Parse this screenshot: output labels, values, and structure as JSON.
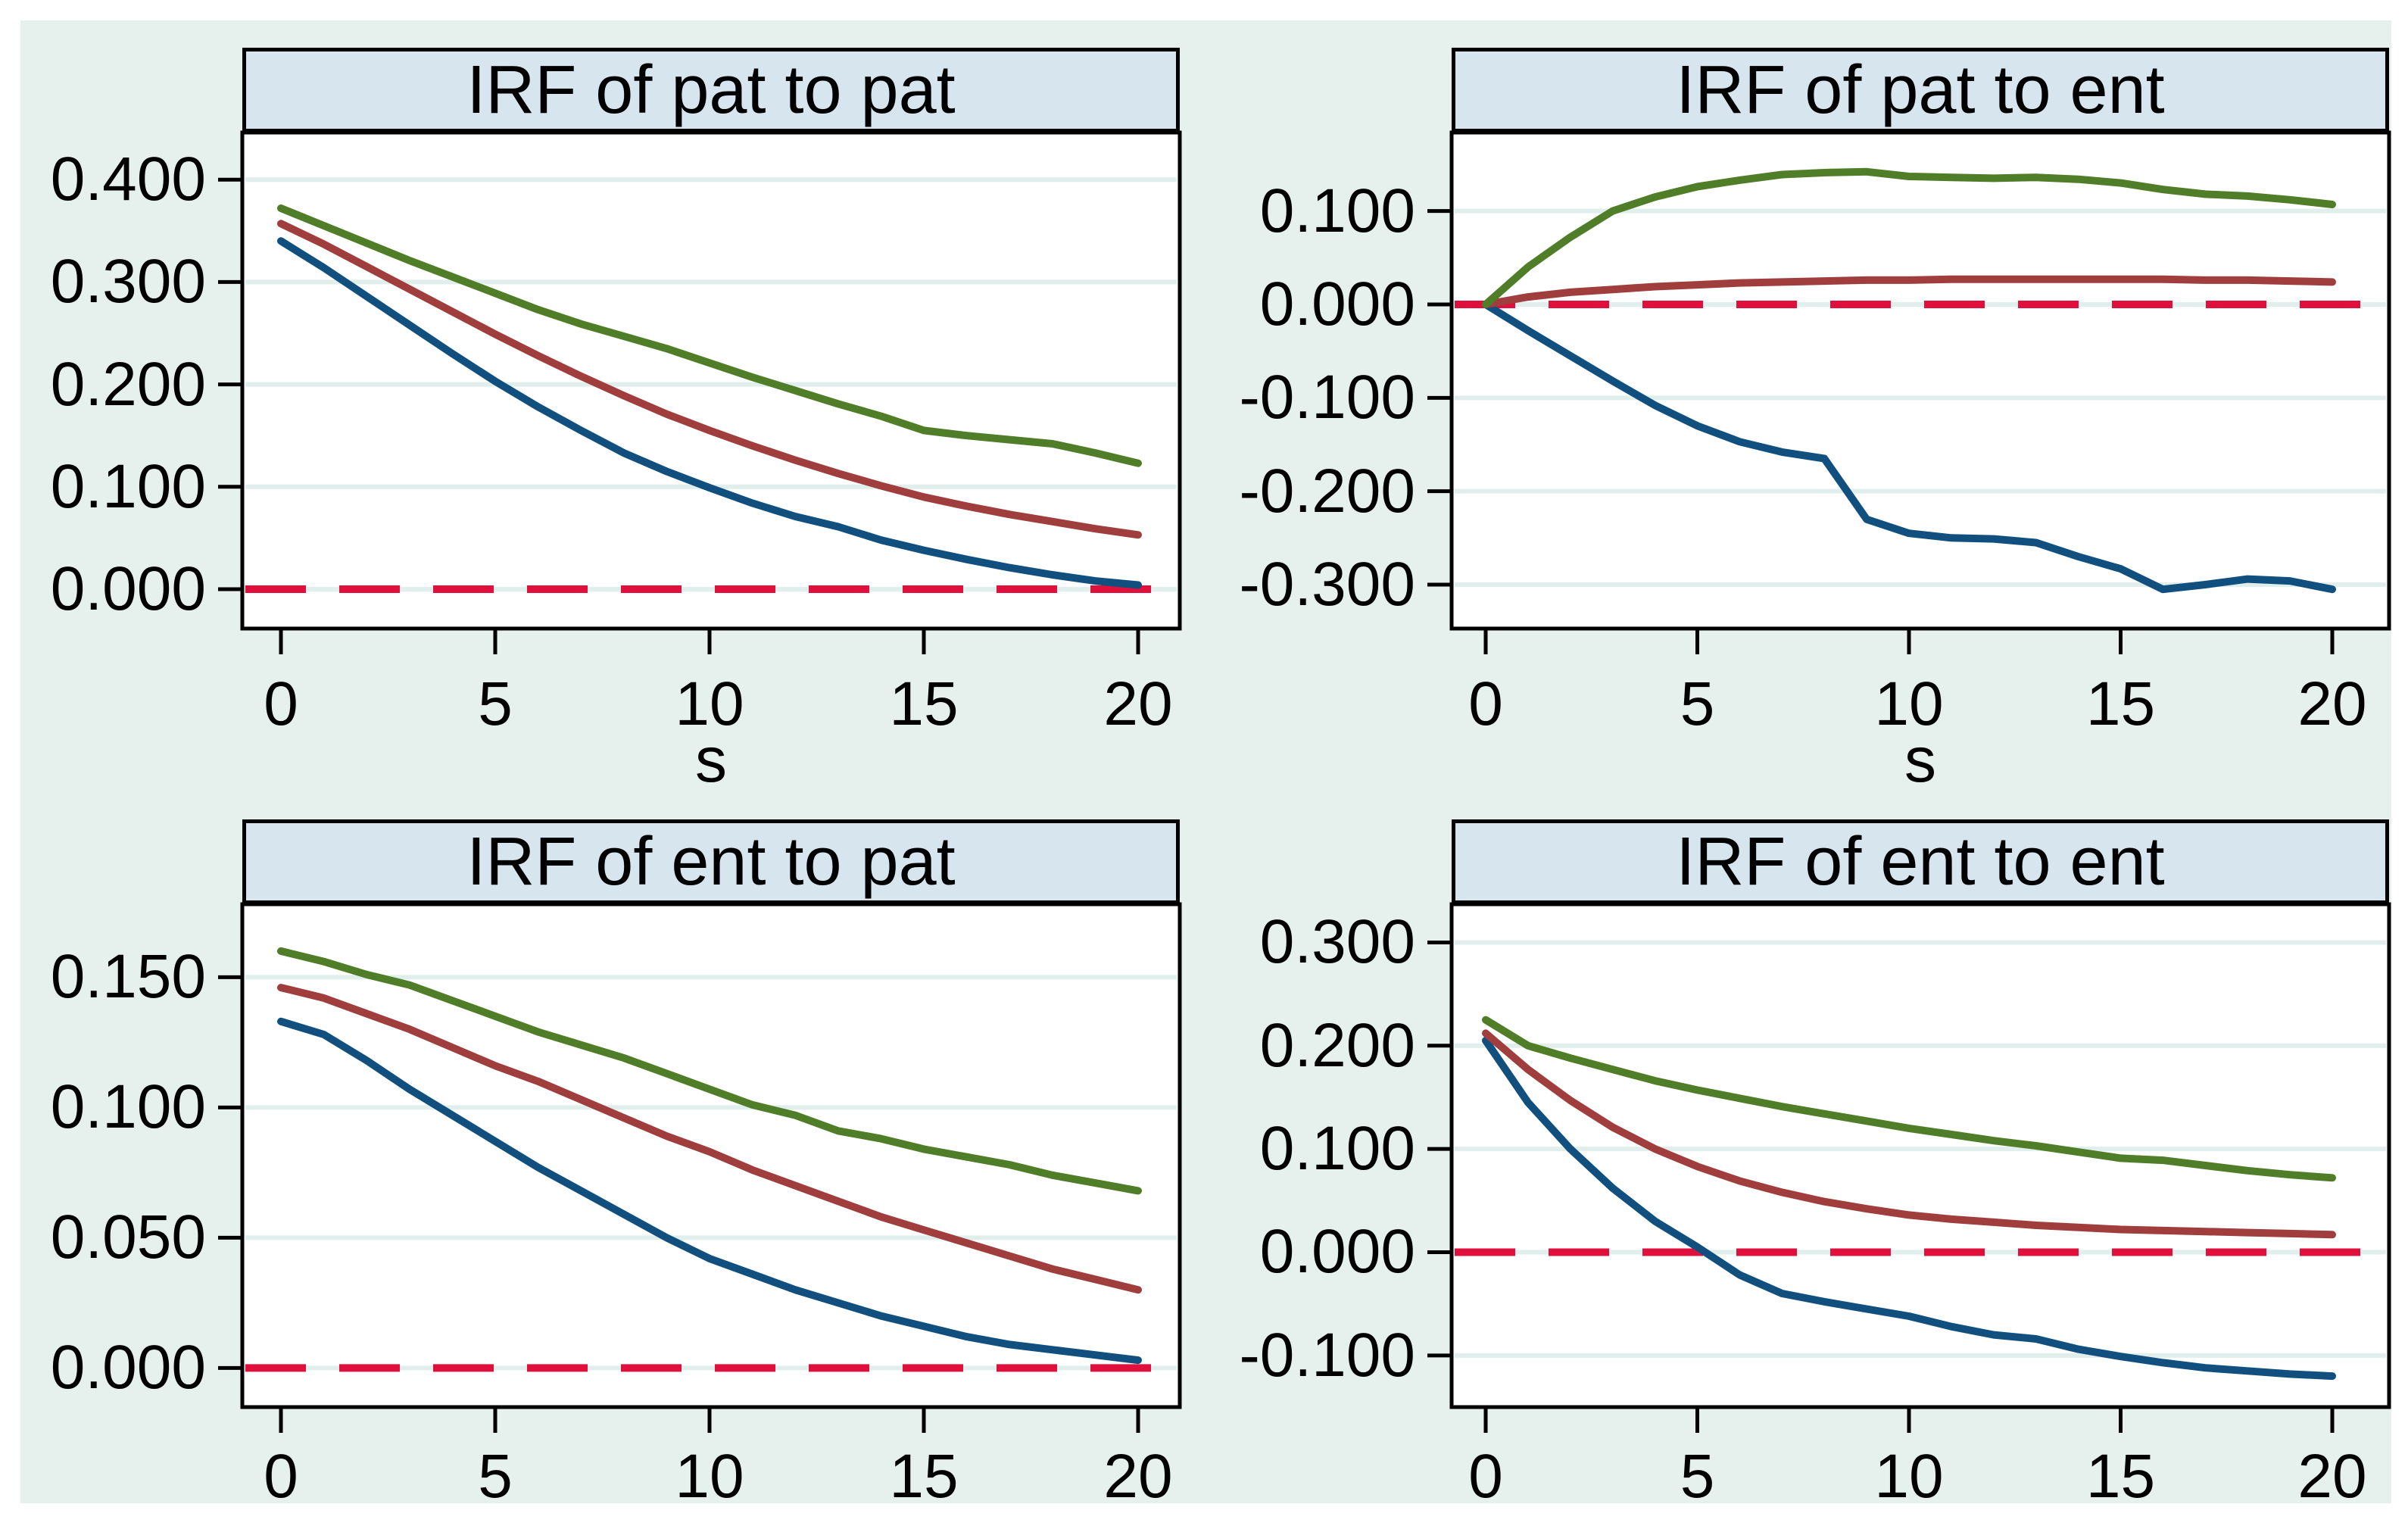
{
  "figure": {
    "page_background": "#ffffff",
    "figure_background": "#e6f1ee",
    "plot_background": "#ffffff",
    "titlebar_background": "#d6e5ee",
    "grid_color": "#e0efec",
    "axis_color": "#000000",
    "zero_line_color": "#e0103c",
    "series_colors": {
      "green": "#4f7d28",
      "red": "#9f3e3c",
      "blue": "#11507e"
    }
  },
  "chart_data": [
    {
      "type": "line",
      "title": "IRF of pat to pat",
      "xlabel": "s",
      "x": [
        0,
        1,
        2,
        3,
        4,
        5,
        6,
        7,
        8,
        9,
        10,
        11,
        12,
        13,
        14,
        15,
        16,
        17,
        18,
        19,
        20
      ],
      "xtick_labels": [
        "0",
        "5",
        "10",
        "15",
        "20"
      ],
      "xtick_values": [
        0,
        5,
        10,
        15,
        20
      ],
      "ytick_labels": [
        "0.000",
        "0.100",
        "0.200",
        "0.300",
        "0.400"
      ],
      "ytick_values": [
        0,
        0.1,
        0.2,
        0.3,
        0.4
      ],
      "ylim": [
        -0.0385,
        0.446
      ],
      "zero_line": 0,
      "grid": true,
      "legend": "none",
      "series": [
        {
          "name": "upper-band-green",
          "color": "#4f7d28",
          "values": [
            0.372,
            0.355,
            0.338,
            0.321,
            0.305,
            0.289,
            0.273,
            0.259,
            0.247,
            0.235,
            0.221,
            0.207,
            0.194,
            0.181,
            0.169,
            0.155,
            0.15,
            0.146,
            0.142,
            0.133,
            0.123
          ]
        },
        {
          "name": "irf-red",
          "color": "#9f3e3c",
          "values": [
            0.357,
            0.337,
            0.315,
            0.293,
            0.271,
            0.249,
            0.228,
            0.208,
            0.189,
            0.171,
            0.155,
            0.14,
            0.126,
            0.113,
            0.101,
            0.09,
            0.081,
            0.073,
            0.066,
            0.059,
            0.053
          ]
        },
        {
          "name": "lower-band-blue",
          "color": "#11507e",
          "values": [
            0.34,
            0.314,
            0.286,
            0.258,
            0.23,
            0.203,
            0.178,
            0.155,
            0.133,
            0.115,
            0.099,
            0.084,
            0.071,
            0.061,
            0.048,
            0.038,
            0.029,
            0.021,
            0.014,
            0.008,
            0.004
          ]
        }
      ]
    },
    {
      "type": "line",
      "title": "IRF of pat to ent",
      "xlabel": "s",
      "x": [
        0,
        1,
        2,
        3,
        4,
        5,
        6,
        7,
        8,
        9,
        10,
        11,
        12,
        13,
        14,
        15,
        16,
        17,
        18,
        19,
        20
      ],
      "xtick_labels": [
        "0",
        "5",
        "10",
        "15",
        "20"
      ],
      "xtick_values": [
        0,
        5,
        10,
        15,
        20
      ],
      "ytick_labels": [
        "0.100",
        "0.000",
        "-0.100",
        "-0.200",
        "-0.300"
      ],
      "ytick_values": [
        0.1,
        0,
        -0.1,
        -0.2,
        -0.3
      ],
      "ylim": [
        -0.347,
        0.184
      ],
      "zero_line": 0,
      "grid": true,
      "legend": "none",
      "series": [
        {
          "name": "upper-band-green",
          "color": "#4f7d28",
          "values": [
            0.0,
            0.04,
            0.072,
            0.1,
            0.115,
            0.126,
            0.133,
            0.139,
            0.141,
            0.142,
            0.137,
            0.136,
            0.135,
            0.136,
            0.134,
            0.13,
            0.123,
            0.118,
            0.116,
            0.112,
            0.107
          ]
        },
        {
          "name": "irf-red",
          "color": "#9f3e3c",
          "values": [
            0.0,
            0.008,
            0.013,
            0.016,
            0.019,
            0.021,
            0.023,
            0.024,
            0.025,
            0.026,
            0.026,
            0.027,
            0.027,
            0.027,
            0.027,
            0.027,
            0.027,
            0.026,
            0.026,
            0.025,
            0.024
          ]
        },
        {
          "name": "lower-band-blue",
          "color": "#11507e",
          "values": [
            0.0,
            -0.028,
            -0.055,
            -0.082,
            -0.108,
            -0.13,
            -0.147,
            -0.158,
            -0.165,
            -0.23,
            -0.245,
            -0.25,
            -0.251,
            -0.255,
            -0.27,
            -0.283,
            -0.305,
            -0.3,
            -0.294,
            -0.296,
            -0.305
          ]
        }
      ]
    },
    {
      "type": "line",
      "title": "IRF of ent to pat",
      "xlabel": "",
      "x": [
        0,
        1,
        2,
        3,
        4,
        5,
        6,
        7,
        8,
        9,
        10,
        11,
        12,
        13,
        14,
        15,
        16,
        17,
        18,
        19,
        20
      ],
      "xtick_labels": [
        "0",
        "5",
        "10",
        "15",
        "20"
      ],
      "xtick_values": [
        0,
        5,
        10,
        15,
        20
      ],
      "ytick_labels": [
        "0.000",
        "0.050",
        "0.100",
        "0.150"
      ],
      "ytick_values": [
        0,
        0.05,
        0.1,
        0.15
      ],
      "ylim": [
        -0.015,
        0.178
      ],
      "zero_line": 0,
      "grid": true,
      "legend": "none",
      "series": [
        {
          "name": "upper-band-green",
          "color": "#4f7d28",
          "values": [
            0.16,
            0.156,
            0.151,
            0.147,
            0.141,
            0.135,
            0.129,
            0.124,
            0.119,
            0.113,
            0.107,
            0.101,
            0.097,
            0.091,
            0.088,
            0.084,
            0.081,
            0.078,
            0.074,
            0.071,
            0.068
          ]
        },
        {
          "name": "irf-red",
          "color": "#9f3e3c",
          "values": [
            0.146,
            0.142,
            0.136,
            0.13,
            0.123,
            0.116,
            0.11,
            0.103,
            0.096,
            0.089,
            0.083,
            0.076,
            0.07,
            0.064,
            0.058,
            0.053,
            0.048,
            0.043,
            0.038,
            0.034,
            0.03
          ]
        },
        {
          "name": "lower-band-blue",
          "color": "#11507e",
          "values": [
            0.133,
            0.128,
            0.118,
            0.107,
            0.097,
            0.087,
            0.077,
            0.068,
            0.059,
            0.05,
            0.042,
            0.036,
            0.03,
            0.025,
            0.02,
            0.016,
            0.012,
            0.009,
            0.007,
            0.005,
            0.003
          ]
        }
      ]
    },
    {
      "type": "line",
      "title": "IRF of ent to ent",
      "xlabel": "",
      "x": [
        0,
        1,
        2,
        3,
        4,
        5,
        6,
        7,
        8,
        9,
        10,
        11,
        12,
        13,
        14,
        15,
        16,
        17,
        18,
        19,
        20
      ],
      "xtick_labels": [
        "0",
        "5",
        "10",
        "15",
        "20"
      ],
      "xtick_values": [
        0,
        5,
        10,
        15,
        20
      ],
      "ytick_labels": [
        "-0.100",
        "0.000",
        "0.100",
        "0.200",
        "0.300"
      ],
      "ytick_values": [
        -0.1,
        0,
        0.1,
        0.2,
        0.3
      ],
      "ylim": [
        -0.15,
        0.337
      ],
      "zero_line": 0,
      "grid": true,
      "legend": "none",
      "series": [
        {
          "name": "upper-band-green",
          "color": "#4f7d28",
          "values": [
            0.225,
            0.2,
            0.188,
            0.177,
            0.166,
            0.157,
            0.149,
            0.141,
            0.134,
            0.127,
            0.12,
            0.114,
            0.108,
            0.103,
            0.097,
            0.091,
            0.089,
            0.084,
            0.079,
            0.075,
            0.072
          ]
        },
        {
          "name": "irf-red",
          "color": "#9f3e3c",
          "values": [
            0.212,
            0.177,
            0.147,
            0.121,
            0.1,
            0.083,
            0.069,
            0.058,
            0.049,
            0.042,
            0.036,
            0.032,
            0.029,
            0.026,
            0.024,
            0.022,
            0.021,
            0.02,
            0.019,
            0.018,
            0.017
          ]
        },
        {
          "name": "lower-band-blue",
          "color": "#11507e",
          "values": [
            0.205,
            0.145,
            0.1,
            0.062,
            0.03,
            0.005,
            -0.022,
            -0.04,
            -0.048,
            -0.055,
            -0.062,
            -0.072,
            -0.08,
            -0.084,
            -0.094,
            -0.101,
            -0.107,
            -0.112,
            -0.115,
            -0.118,
            -0.12
          ]
        }
      ]
    }
  ]
}
